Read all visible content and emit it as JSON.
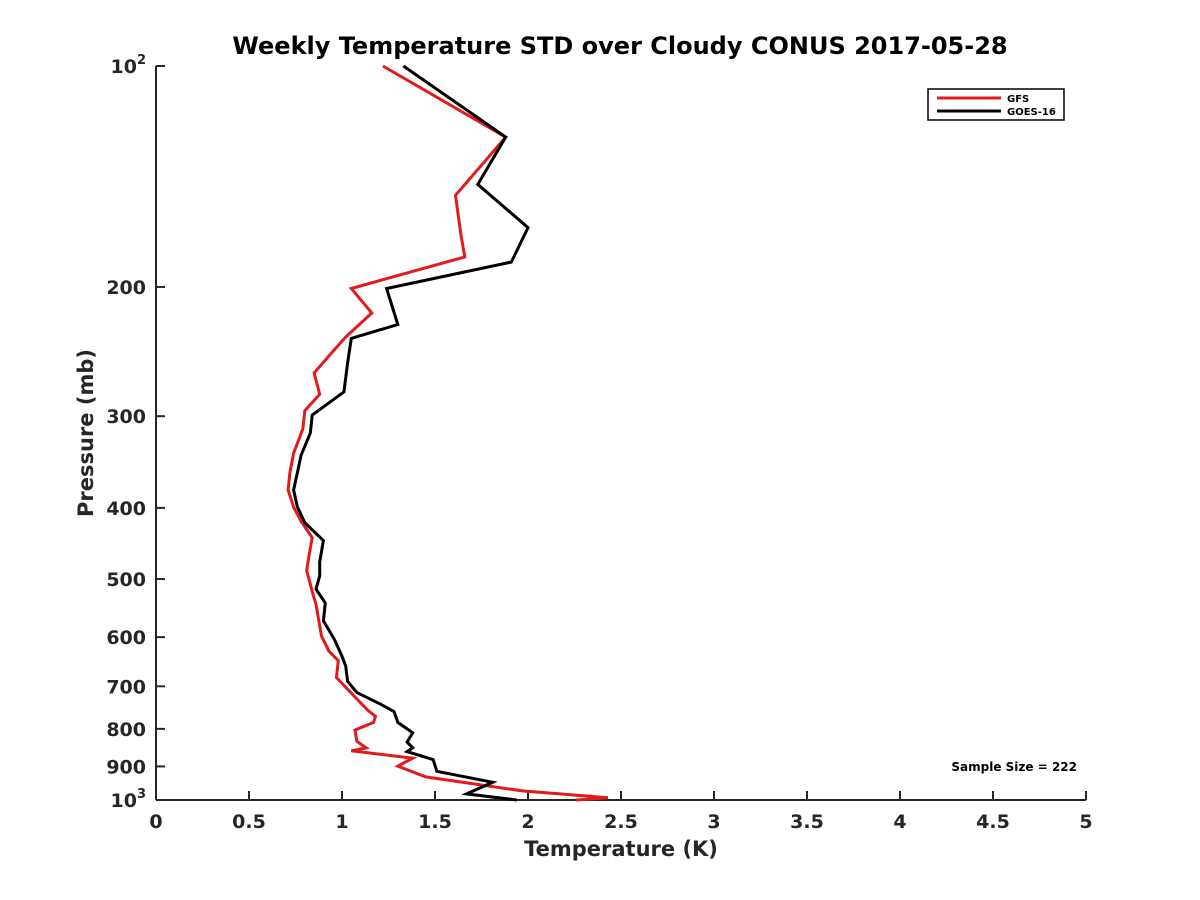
{
  "chart_data": {
    "type": "line",
    "title": "Weekly Temperature STD over Cloudy CONUS 2017-05-28",
    "xlabel": "Temperature (K)",
    "ylabel": "Pressure (mb)",
    "xlim": [
      0,
      5
    ],
    "ylim": [
      100,
      1000
    ],
    "yscale": "log",
    "y_reversed": true,
    "xticks": [
      0,
      0.5,
      1,
      1.5,
      2,
      2.5,
      3,
      3.5,
      4,
      4.5,
      5
    ],
    "xtick_labels": [
      "0",
      "0.5",
      "1",
      "1.5",
      "2",
      "2.5",
      "3",
      "3.5",
      "4",
      "4.5",
      "5"
    ],
    "yticks": [
      100,
      200,
      300,
      400,
      500,
      600,
      700,
      800,
      900,
      1000
    ],
    "ytick_labels": [
      {
        "base": "10",
        "exp": "2"
      },
      {
        "base": "200",
        "exp": ""
      },
      {
        "base": "300",
        "exp": ""
      },
      {
        "base": "400",
        "exp": ""
      },
      {
        "base": "500",
        "exp": ""
      },
      {
        "base": "600",
        "exp": ""
      },
      {
        "base": "700",
        "exp": ""
      },
      {
        "base": "800",
        "exp": ""
      },
      {
        "base": "900",
        "exp": ""
      },
      {
        "base": "10",
        "exp": "3"
      }
    ],
    "legend_position": "top-right",
    "annotation": "Sample Size = 222",
    "series": [
      {
        "name": "GFS",
        "color": "#e31a1c",
        "points": [
          [
            1.22,
            100
          ],
          [
            1.88,
            125
          ],
          [
            1.61,
            150
          ],
          [
            1.64,
            170
          ],
          [
            1.66,
            182
          ],
          [
            1.05,
            201
          ],
          [
            1.16,
            217
          ],
          [
            1.02,
            234
          ],
          [
            0.95,
            245
          ],
          [
            0.85,
            262
          ],
          [
            0.88,
            280
          ],
          [
            0.8,
            295
          ],
          [
            0.79,
            312
          ],
          [
            0.74,
            337
          ],
          [
            0.72,
            358
          ],
          [
            0.71,
            378
          ],
          [
            0.74,
            399
          ],
          [
            0.78,
            417
          ],
          [
            0.84,
            439
          ],
          [
            0.82,
            469
          ],
          [
            0.81,
            487
          ],
          [
            0.84,
            520
          ],
          [
            0.86,
            541
          ],
          [
            0.88,
            579
          ],
          [
            0.89,
            598
          ],
          [
            0.93,
            627
          ],
          [
            0.98,
            646
          ],
          [
            0.97,
            681
          ],
          [
            1.02,
            702
          ],
          [
            1.07,
            724
          ],
          [
            1.14,
            755
          ],
          [
            1.18,
            769
          ],
          [
            1.17,
            784
          ],
          [
            1.07,
            803
          ],
          [
            1.08,
            832
          ],
          [
            1.13,
            849
          ],
          [
            1.05,
            857
          ],
          [
            1.38,
            877
          ],
          [
            1.3,
            899
          ],
          [
            1.45,
            930
          ],
          [
            1.97,
            972
          ],
          [
            2.43,
            993
          ],
          [
            2.26,
            1000
          ]
        ]
      },
      {
        "name": "GOES-16",
        "color": "#000000",
        "points": [
          [
            1.33,
            100
          ],
          [
            1.88,
            125
          ],
          [
            1.73,
            145
          ],
          [
            2.0,
            166
          ],
          [
            1.91,
            185
          ],
          [
            1.24,
            201
          ],
          [
            1.3,
            225
          ],
          [
            1.05,
            235
          ],
          [
            1.03,
            254
          ],
          [
            1.01,
            278
          ],
          [
            0.84,
            299
          ],
          [
            0.83,
            316
          ],
          [
            0.78,
            339
          ],
          [
            0.76,
            358
          ],
          [
            0.74,
            378
          ],
          [
            0.76,
            399
          ],
          [
            0.8,
            419
          ],
          [
            0.9,
            443
          ],
          [
            0.88,
            474
          ],
          [
            0.88,
            495
          ],
          [
            0.86,
            516
          ],
          [
            0.91,
            539
          ],
          [
            0.9,
            570
          ],
          [
            0.96,
            605
          ],
          [
            1.0,
            637
          ],
          [
            1.02,
            657
          ],
          [
            1.03,
            689
          ],
          [
            1.08,
            714
          ],
          [
            1.21,
            741
          ],
          [
            1.28,
            758
          ],
          [
            1.3,
            784
          ],
          [
            1.38,
            810
          ],
          [
            1.35,
            834
          ],
          [
            1.38,
            849
          ],
          [
            1.35,
            859
          ],
          [
            1.49,
            881
          ],
          [
            1.51,
            914
          ],
          [
            1.81,
            946
          ],
          [
            1.67,
            981
          ],
          [
            1.94,
            1000
          ]
        ]
      }
    ]
  }
}
